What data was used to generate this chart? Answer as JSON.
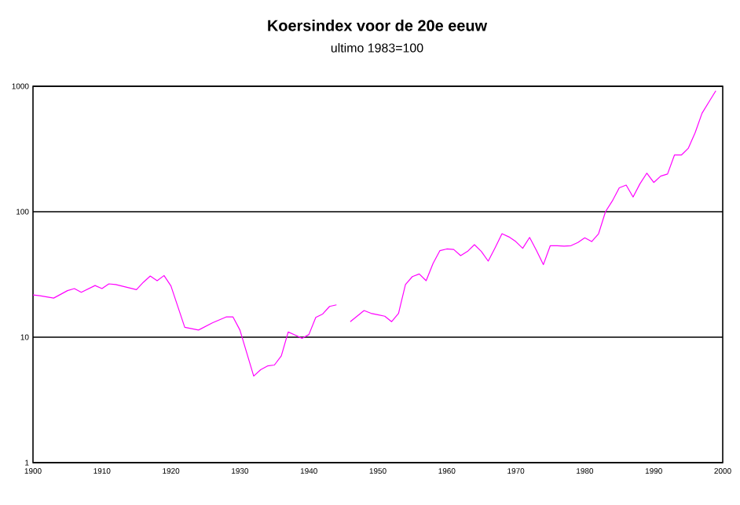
{
  "chart_data": {
    "type": "line",
    "title": "Koersindex voor de 20e eeuw",
    "subtitle": "ultimo 1983=100",
    "x": [
      1900,
      1901,
      1903,
      1905,
      1906,
      1907,
      1909,
      1910,
      1911,
      1912,
      1915,
      1916,
      1917,
      1918,
      1919,
      1920,
      1922,
      1924,
      1926,
      1928,
      1929,
      1930,
      1932,
      1933,
      1934,
      1935,
      1936,
      1937,
      1938,
      1939,
      1940,
      1941,
      1942,
      1943,
      1944,
      1945,
      1946,
      1948,
      1949,
      1950,
      1951,
      1952,
      1953,
      1954,
      1955,
      1956,
      1957,
      1958,
      1959,
      1960,
      1961,
      1962,
      1963,
      1964,
      1965,
      1966,
      1967,
      1968,
      1969,
      1970,
      1971,
      1972,
      1973,
      1974,
      1975,
      1976,
      1977,
      1978,
      1979,
      1980,
      1981,
      1982,
      1983,
      1984,
      1985,
      1986,
      1987,
      1988,
      1989,
      1990,
      1991,
      1992,
      1993,
      1994,
      1995,
      1996,
      1997,
      1998,
      1999
    ],
    "values": [
      21.7,
      21.4,
      20.5,
      23.5,
      24.4,
      22.8,
      25.8,
      24.4,
      26.6,
      26.3,
      23.9,
      27.4,
      30.7,
      28.2,
      31,
      25.6,
      12,
      11.4,
      13,
      14.5,
      14.5,
      11.4,
      4.9,
      5.5,
      5.9,
      6.0,
      7.1,
      11,
      10.4,
      9.8,
      10.5,
      14.4,
      15.3,
      17.6,
      18.1,
      null,
      13.3,
      16.3,
      15.5,
      15.1,
      14.7,
      13.3,
      15.5,
      26.3,
      30.4,
      31.9,
      28.2,
      38.7,
      49,
      50.5,
      50,
      44.7,
      48.3,
      54.6,
      48.3,
      40.4,
      51.6,
      66.8,
      63,
      57.8,
      51.1,
      62.4,
      49,
      37.9,
      53.6,
      53.6,
      53.2,
      53.6,
      56.8,
      61.9,
      57.8,
      66.8,
      100,
      122,
      155,
      163,
      131,
      167,
      203,
      171,
      192,
      200,
      283,
      283,
      320,
      426,
      610,
      750,
      920
    ],
    "color": "#ff00ff",
    "log": "y",
    "grid": "y",
    "xlim": [
      1900,
      2000
    ],
    "xticks": [
      1900,
      1910,
      1920,
      1930,
      1940,
      1950,
      1960,
      1970,
      1980,
      1990,
      2000
    ],
    "ylim": [
      1,
      1000
    ],
    "yticks": [
      1,
      10,
      100,
      1000
    ]
  }
}
